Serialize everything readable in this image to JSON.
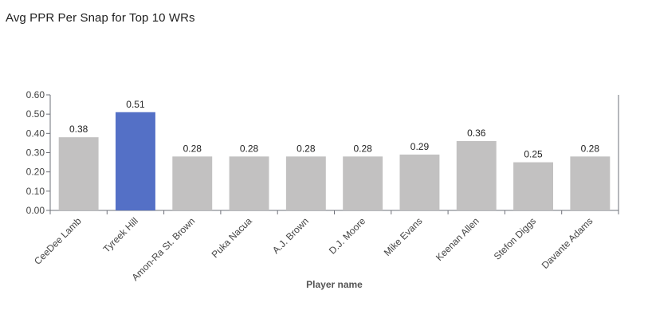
{
  "title": "Avg PPR Per Snap for Top 10 WRs",
  "chart_data": {
    "type": "bar",
    "title": "Avg PPR Per Snap for Top 10 WRs",
    "xlabel": "Player name",
    "ylabel": "",
    "ylim": [
      0,
      0.6
    ],
    "yticks": [
      "0.00",
      "0.10",
      "0.20",
      "0.30",
      "0.40",
      "0.50",
      "0.60"
    ],
    "categories": [
      "CeeDee Lamb",
      "Tyreek Hill",
      "Amon-Ra St. Brown",
      "Puka Nacua",
      "A.J. Brown",
      "D.J. Moore",
      "Mike Evans",
      "Keenan Allen",
      "Stefon Diggs",
      "Davante Adams"
    ],
    "values": [
      0.38,
      0.51,
      0.28,
      0.28,
      0.28,
      0.28,
      0.29,
      0.36,
      0.25,
      0.28
    ],
    "value_labels": [
      "0.38",
      "0.51",
      "0.28",
      "0.28",
      "0.28",
      "0.28",
      "0.29",
      "0.36",
      "0.25",
      "0.28"
    ],
    "highlight_index": 1,
    "colors": {
      "bar": "#c2c1c1",
      "highlight": "#5470c6",
      "axis": "#6e7079"
    },
    "grid": false,
    "legend": "none"
  }
}
